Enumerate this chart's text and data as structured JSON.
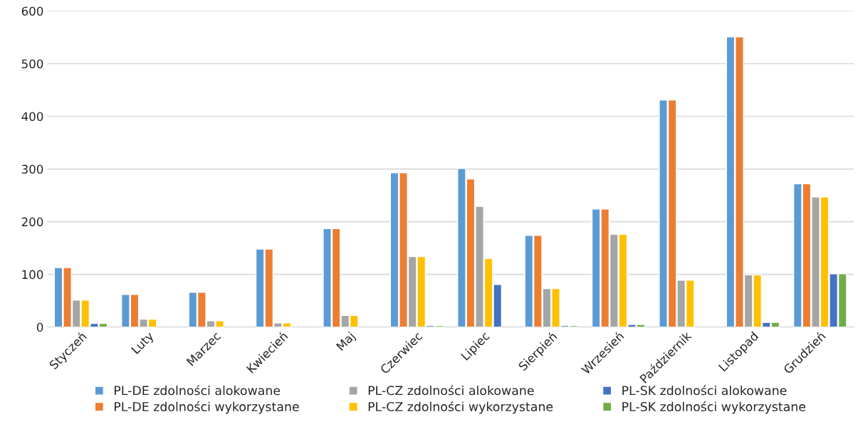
{
  "chart_data": {
    "type": "bar",
    "categories": [
      "Styczeń",
      "Luty",
      "Marzec",
      "Kwiecień",
      "Maj",
      "Czerwiec",
      "Lipiec",
      "Sierpień",
      "Wrzesień",
      "Październik",
      "Listopad",
      "Grudzień"
    ],
    "series": [
      {
        "name": "PL-DE zdolności alokowane",
        "color": "#5b9bd5",
        "values": [
          113,
          62,
          66,
          148,
          187,
          293,
          301,
          174,
          224,
          431,
          551,
          272
        ]
      },
      {
        "name": "PL-DE zdolności wykorzystane",
        "color": "#ed7d31",
        "values": [
          113,
          62,
          66,
          148,
          187,
          293,
          281,
          174,
          224,
          431,
          551,
          272
        ]
      },
      {
        "name": "PL-CZ zdolności alokowane",
        "color": "#a5a5a5",
        "values": [
          51,
          15,
          12,
          8,
          22,
          134,
          229,
          73,
          176,
          89,
          99,
          247
        ]
      },
      {
        "name": "PL-CZ zdolności wykorzystane",
        "color": "#ffc000",
        "values": [
          51,
          15,
          12,
          8,
          22,
          134,
          130,
          73,
          176,
          89,
          99,
          247
        ]
      },
      {
        "name": "PL-SK zdolności alokowane",
        "color": "#4472c4",
        "values": [
          7,
          null,
          null,
          null,
          null,
          3,
          81,
          3,
          5,
          null,
          9,
          101
        ]
      },
      {
        "name": "PL-SK zdolności wykorzystane",
        "color": "#70ad47",
        "values": [
          7,
          null,
          null,
          null,
          null,
          3,
          null,
          3,
          5,
          null,
          9,
          101
        ]
      }
    ],
    "ylim": [
      0,
      600
    ],
    "yticks": [
      0,
      100,
      200,
      300,
      400,
      500,
      600
    ],
    "grid": "y",
    "legend": "bottom"
  }
}
